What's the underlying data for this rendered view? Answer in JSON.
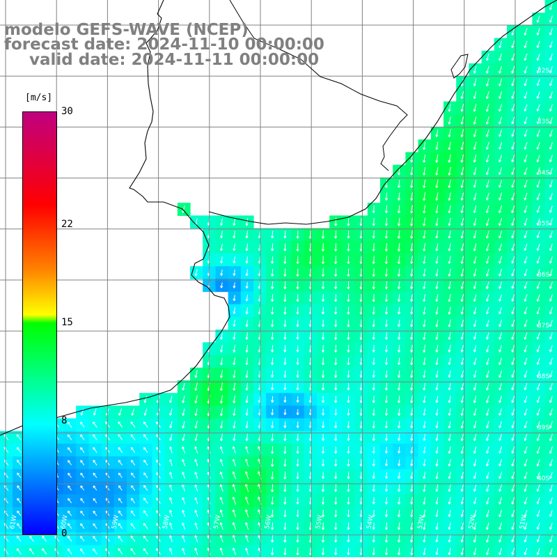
{
  "titles": {
    "line1": "modelo GEFS-WAVE (NCEP)",
    "line2": "forecast date: 2024-11-10 00:00:00",
    "line3": "valid date: 2024-11-11 00:00:00"
  },
  "colorbar": {
    "unit": "[m/s]",
    "min": 0,
    "max": 30,
    "ticks": [
      "30",
      "22",
      "15",
      "8",
      "0"
    ],
    "tick_values": [
      30,
      22,
      15,
      8,
      0
    ],
    "colors": [
      "#0000ff",
      "#00ffff",
      "#00ff00",
      "#ffff00",
      "#ff8000",
      "#ff0000",
      "#c00080"
    ]
  },
  "map": {
    "field": "wind speed and direction",
    "lat_labels": [
      "32S",
      "33S",
      "34S",
      "35S",
      "36S",
      "37S",
      "38S",
      "39S",
      "40S"
    ],
    "lon_labels": [
      "61W",
      "60W",
      "59W",
      "58W",
      "57W",
      "56W",
      "55W",
      "54W",
      "53W",
      "52W",
      "51W"
    ],
    "land_color": "#ffffff",
    "grid_color": "#808080",
    "coast_color": "#000000",
    "arrow_color": "#ffffff"
  }
}
